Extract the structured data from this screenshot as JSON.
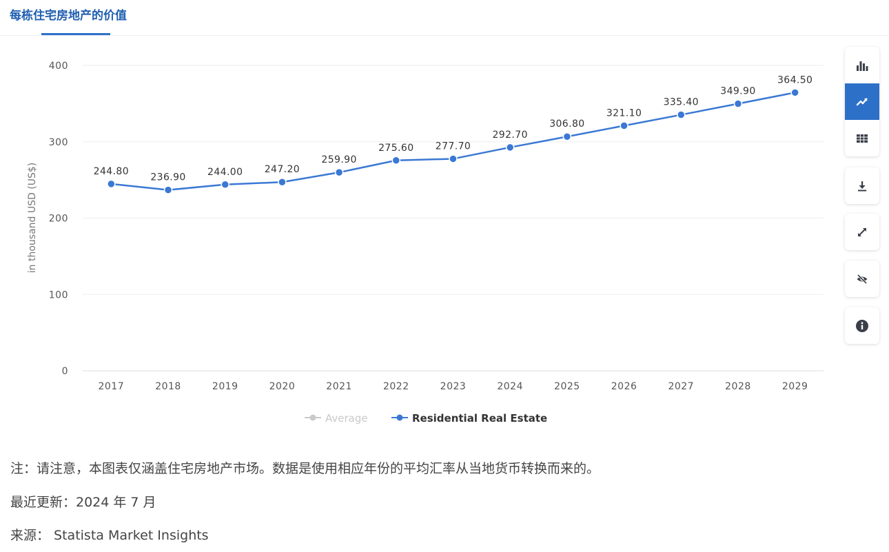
{
  "header": {
    "tab_title": "每栋住宅房地产的价值"
  },
  "chart_data": {
    "type": "line",
    "x": [
      "2017",
      "2018",
      "2019",
      "2020",
      "2021",
      "2022",
      "2023",
      "2024",
      "2025",
      "2026",
      "2027",
      "2028",
      "2029"
    ],
    "series": [
      {
        "name": "Residential Real Estate",
        "values": [
          244.8,
          236.9,
          244.0,
          247.2,
          259.9,
          275.6,
          277.7,
          292.7,
          306.8,
          321.1,
          335.4,
          349.9,
          364.5
        ],
        "labels": [
          "244.80",
          "236.90",
          "244.00",
          "247.20",
          "259.90",
          "275.60",
          "277.70",
          "292.70",
          "306.80",
          "321.10",
          "335.40",
          "349.90",
          "364.50"
        ],
        "color": "#3a78d4"
      }
    ],
    "ylabel": "in thousand USD (US$)",
    "yticks": [
      "0",
      "100",
      "200",
      "300",
      "400"
    ],
    "ylim": [
      0,
      400
    ],
    "grid": true,
    "legend": {
      "placement": "bottom-center",
      "items": [
        {
          "name": "Average",
          "color": "#c9c9c9",
          "active": false
        },
        {
          "name": "Residential Real Estate",
          "color": "#3a78d4",
          "active": true
        }
      ]
    }
  },
  "toolbar": {
    "buttons": [
      {
        "id": "bar-chart",
        "icon": "bar-chart-icon",
        "active": false
      },
      {
        "id": "line-chart",
        "icon": "line-chart-icon",
        "active": true
      },
      {
        "id": "table",
        "icon": "table-icon",
        "active": false
      },
      {
        "id": "download",
        "icon": "download-icon",
        "active": false
      },
      {
        "id": "fullscreen",
        "icon": "expand-icon",
        "active": false
      },
      {
        "id": "hide",
        "icon": "eye-off-icon",
        "active": false
      },
      {
        "id": "info",
        "icon": "info-icon",
        "active": false
      }
    ],
    "active_color": "#2d70c8",
    "icon_color": "#3a3f4a"
  },
  "notes": {
    "note": "注：请注意，本图表仅涵盖住宅房地产市场。数据是使用相应年份的平均汇率从当地货币转换而来的。",
    "updated": "最近更新：2024 年 7 月",
    "source": "来源： Statista Market Insights"
  }
}
